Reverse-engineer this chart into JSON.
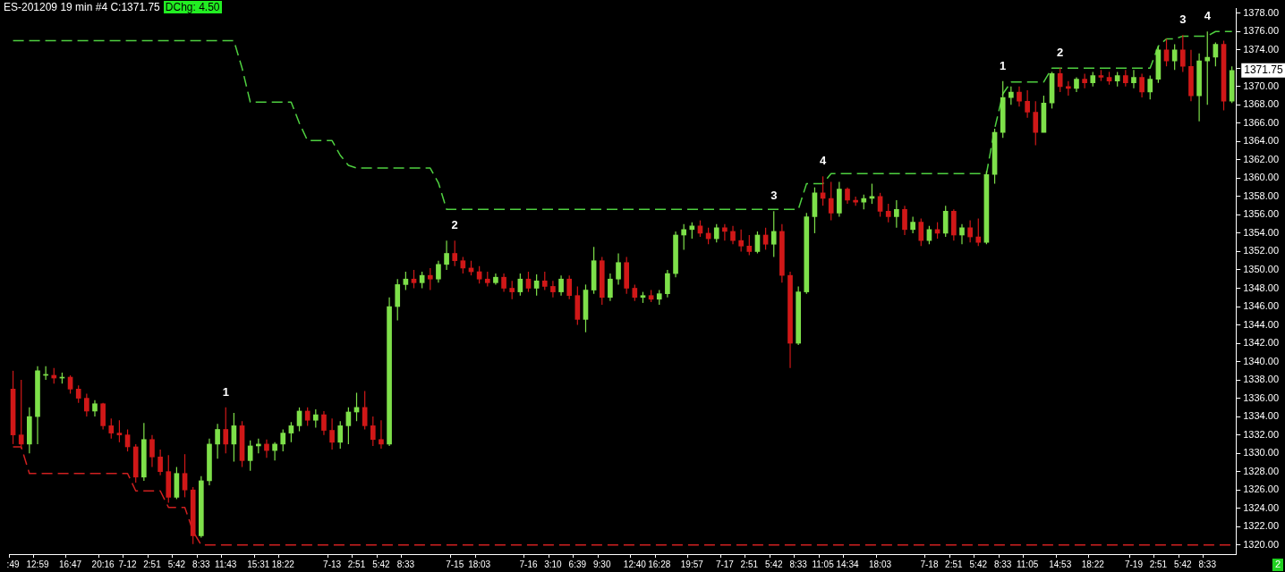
{
  "chart_data": {
    "type": "candlestick",
    "title": "ES-201209 19 min #4 C:1371.75",
    "subtitle": "DChg: 4.50",
    "categories": [
      ":49",
      null,
      null,
      "12:59",
      null,
      null,
      null,
      "16:47",
      null,
      null,
      null,
      "20:16",
      null,
      null,
      "7-12",
      null,
      null,
      "2:51",
      null,
      null,
      "5:42",
      null,
      null,
      "8:33",
      null,
      null,
      "11:43",
      null,
      null,
      null,
      "15:31",
      null,
      null,
      "18:22",
      null,
      null,
      null,
      null,
      null,
      "7-13",
      null,
      null,
      "2:51",
      null,
      null,
      "5:42",
      null,
      null,
      "8:33",
      null,
      null,
      null,
      null,
      null,
      "7-15",
      null,
      null,
      "18:03",
      null,
      null,
      null,
      null,
      null,
      "7-16",
      null,
      null,
      "3:10",
      null,
      null,
      "6:39",
      null,
      null,
      "9:30",
      null,
      null,
      null,
      "12:40",
      null,
      null,
      "16:28",
      null,
      null,
      null,
      "19:57",
      null,
      null,
      null,
      "7-17",
      null,
      null,
      "2:51",
      null,
      null,
      "5:42",
      null,
      null,
      "8:33",
      null,
      null,
      "11:05",
      null,
      null,
      "14:34",
      null,
      null,
      null,
      "18:03",
      null,
      null,
      null,
      null,
      null,
      "7-18",
      null,
      null,
      "2:51",
      null,
      null,
      "5:42",
      null,
      null,
      "8:33",
      null,
      null,
      "11:05",
      null,
      null,
      null,
      "14:53",
      null,
      null,
      null,
      "18:22",
      null,
      null,
      null,
      null,
      "7-19",
      null,
      null,
      "2:51",
      null,
      null,
      "5:42",
      null,
      null,
      "8:33",
      null,
      null,
      null
    ],
    "ohlc": [
      [
        1337,
        1339,
        1331,
        1332
      ],
      [
        1332,
        1338,
        1330.5,
        1331
      ],
      [
        1331,
        1335,
        1330,
        1334
      ],
      [
        1334,
        1339.5,
        1331,
        1339
      ],
      [
        1338.5,
        1339.5,
        1338,
        1338.6
      ],
      [
        1338.5,
        1339.3,
        1337.6,
        1338.2
      ],
      [
        1338.2,
        1338.8,
        1337.6,
        1338.3
      ],
      [
        1338.3,
        1338.5,
        1336.5,
        1337
      ],
      [
        1337,
        1337.4,
        1335.5,
        1336
      ],
      [
        1336,
        1336.5,
        1334,
        1334.6
      ],
      [
        1334.6,
        1335.8,
        1334,
        1335.4
      ],
      [
        1335.4,
        1335.5,
        1332.6,
        1333
      ],
      [
        1333,
        1333.8,
        1331.6,
        1332.2
      ],
      [
        1332.2,
        1333.6,
        1331.2,
        1332
      ],
      [
        1332,
        1332.6,
        1330.2,
        1330.7
      ],
      [
        1330.7,
        1331,
        1326.8,
        1327.4
      ],
      [
        1327.4,
        1333.3,
        1327,
        1331.5
      ],
      [
        1331.5,
        1332,
        1328.5,
        1329.6
      ],
      [
        1329.6,
        1330.4,
        1327.6,
        1328
      ],
      [
        1328,
        1329.8,
        1324.6,
        1325.2
      ],
      [
        1325.2,
        1328.5,
        1325,
        1327.8
      ],
      [
        1327.8,
        1329.9,
        1325.2,
        1326
      ],
      [
        1326,
        1326.3,
        1320.1,
        1321
      ],
      [
        1321,
        1327.5,
        1320.8,
        1327
      ],
      [
        1327,
        1331.6,
        1326.5,
        1331
      ],
      [
        1331,
        1333.2,
        1329.4,
        1332.6
      ],
      [
        1332.6,
        1335,
        1330,
        1331
      ],
      [
        1331,
        1334.4,
        1329.1,
        1333
      ],
      [
        1333,
        1333.5,
        1328.5,
        1329.2
      ],
      [
        1329.2,
        1331.4,
        1328.1,
        1330.8
      ],
      [
        1330.8,
        1331.6,
        1330,
        1331
      ],
      [
        1331,
        1331.5,
        1329.5,
        1330.3
      ],
      [
        1330.3,
        1331.2,
        1329.2,
        1331
      ],
      [
        1331,
        1332.6,
        1330.2,
        1332.2
      ],
      [
        1332.2,
        1333.4,
        1331.2,
        1333
      ],
      [
        1333,
        1335,
        1332.4,
        1334.6
      ],
      [
        1334.6,
        1335,
        1333,
        1333.6
      ],
      [
        1333.6,
        1334.8,
        1332.8,
        1334.2
      ],
      [
        1334.2,
        1334.6,
        1332,
        1332.5
      ],
      [
        1332.5,
        1333.8,
        1330.4,
        1331.2
      ],
      [
        1331.2,
        1333.5,
        1330.5,
        1333
      ],
      [
        1333,
        1335,
        1331,
        1334.5
      ],
      [
        1334.5,
        1336.6,
        1333.5,
        1335
      ],
      [
        1335,
        1336.8,
        1332.6,
        1333
      ],
      [
        1333,
        1334,
        1330.8,
        1331.5
      ],
      [
        1331.5,
        1333.6,
        1330.5,
        1331
      ],
      [
        1331,
        1347,
        1330.8,
        1346
      ],
      [
        1346,
        1349,
        1344.5,
        1348.4
      ],
      [
        1348.4,
        1349.8,
        1347.8,
        1349
      ],
      [
        1349,
        1350,
        1348,
        1348.6
      ],
      [
        1348.6,
        1349.8,
        1348,
        1349.4
      ],
      [
        1349.4,
        1350.2,
        1347.8,
        1349
      ],
      [
        1349,
        1351,
        1348.6,
        1350.6
      ],
      [
        1350.6,
        1353.2,
        1350,
        1351.8
      ],
      [
        1351.8,
        1353.2,
        1350.4,
        1351
      ],
      [
        1351,
        1351.4,
        1349.6,
        1350.2
      ],
      [
        1350.2,
        1351,
        1349.4,
        1349.8
      ],
      [
        1349.8,
        1350.4,
        1348.5,
        1349
      ],
      [
        1349,
        1349.8,
        1348.2,
        1348.6
      ],
      [
        1348.6,
        1349.6,
        1348.4,
        1349.2
      ],
      [
        1349.2,
        1349.6,
        1347.6,
        1348
      ],
      [
        1348,
        1348.8,
        1346.8,
        1347.6
      ],
      [
        1347.6,
        1349.6,
        1347.2,
        1349
      ],
      [
        1349,
        1349.8,
        1347.6,
        1348
      ],
      [
        1348,
        1349.5,
        1347.2,
        1348.8
      ],
      [
        1348.8,
        1349.8,
        1347.8,
        1348.2
      ],
      [
        1348.2,
        1348.8,
        1347,
        1347.6
      ],
      [
        1347.6,
        1349.4,
        1347.2,
        1349
      ],
      [
        1349,
        1349.4,
        1346.8,
        1347.2
      ],
      [
        1347.2,
        1348.2,
        1344,
        1344.6
      ],
      [
        1344.6,
        1348.4,
        1343.2,
        1347.8
      ],
      [
        1347.8,
        1352.5,
        1347.4,
        1351
      ],
      [
        1351,
        1351.4,
        1346.2,
        1347
      ],
      [
        1347,
        1349.6,
        1346.6,
        1349
      ],
      [
        1349,
        1351.8,
        1348.4,
        1350.8
      ],
      [
        1350.8,
        1351.4,
        1347.4,
        1348
      ],
      [
        1348,
        1348.4,
        1346.6,
        1347
      ],
      [
        1347,
        1347.6,
        1346.4,
        1347.2
      ],
      [
        1347.2,
        1347.8,
        1346.5,
        1346.8
      ],
      [
        1346.8,
        1347.8,
        1346.2,
        1347.4
      ],
      [
        1347.4,
        1350,
        1347,
        1349.6
      ],
      [
        1349.6,
        1354.2,
        1349.2,
        1353.8
      ],
      [
        1353.8,
        1355,
        1352.2,
        1354.4
      ],
      [
        1354.4,
        1355.2,
        1353.4,
        1354.8
      ],
      [
        1354.8,
        1355.4,
        1353.6,
        1354
      ],
      [
        1354,
        1354.6,
        1352.8,
        1353.4
      ],
      [
        1353.4,
        1355,
        1353,
        1354.6
      ],
      [
        1354.6,
        1355,
        1353.2,
        1354.2
      ],
      [
        1354.2,
        1354.8,
        1352.8,
        1353.2
      ],
      [
        1353.2,
        1354.4,
        1352,
        1352.6
      ],
      [
        1352.6,
        1353.8,
        1351.6,
        1352
      ],
      [
        1352,
        1354.2,
        1351.8,
        1353.8
      ],
      [
        1353.8,
        1354.6,
        1352.2,
        1352.8
      ],
      [
        1352.8,
        1356.4,
        1351.4,
        1354.2
      ],
      [
        1354.2,
        1355,
        1348.6,
        1349.4
      ],
      [
        1349.4,
        1349.8,
        1339.3,
        1342
      ],
      [
        1342,
        1348.2,
        1341.8,
        1347.6
      ],
      [
        1347.6,
        1356.2,
        1347.4,
        1355.8
      ],
      [
        1355.8,
        1359,
        1354,
        1358.4
      ],
      [
        1358.4,
        1360.2,
        1357,
        1357.8
      ],
      [
        1357.8,
        1359.6,
        1355.4,
        1356.2
      ],
      [
        1356.2,
        1359.6,
        1355.8,
        1358.8
      ],
      [
        1358.8,
        1359,
        1357.2,
        1357.6
      ],
      [
        1357.6,
        1358,
        1357,
        1357.4
      ],
      [
        1357.4,
        1358.2,
        1356.6,
        1357.8
      ],
      [
        1357.8,
        1359.4,
        1357.2,
        1358
      ],
      [
        1358,
        1358.4,
        1355.8,
        1356.4
      ],
      [
        1356.4,
        1357.2,
        1355.2,
        1355.8
      ],
      [
        1355.8,
        1357.6,
        1354.6,
        1356.6
      ],
      [
        1356.6,
        1357,
        1353.8,
        1354.4
      ],
      [
        1354.4,
        1355.8,
        1354,
        1355.2
      ],
      [
        1355.2,
        1355.6,
        1352.6,
        1353.2
      ],
      [
        1353.2,
        1354.8,
        1352.8,
        1354.4
      ],
      [
        1354.4,
        1355.2,
        1353.4,
        1354
      ],
      [
        1354,
        1357,
        1353.6,
        1356.4
      ],
      [
        1356.4,
        1356.6,
        1353.2,
        1353.8
      ],
      [
        1353.8,
        1355,
        1352.8,
        1354.6
      ],
      [
        1354.6,
        1355.4,
        1353,
        1353.6
      ],
      [
        1353.6,
        1355.6,
        1352.6,
        1353
      ],
      [
        1353,
        1360.8,
        1352.8,
        1360.4
      ],
      [
        1360.4,
        1365.4,
        1359.4,
        1365
      ],
      [
        1365,
        1370.6,
        1364.4,
        1368.8
      ],
      [
        1368.8,
        1370,
        1368,
        1369.4
      ],
      [
        1369.4,
        1370,
        1367.8,
        1368.4
      ],
      [
        1368.4,
        1369.6,
        1366.6,
        1367.2
      ],
      [
        1367.2,
        1368.4,
        1363.6,
        1365
      ],
      [
        1365,
        1369,
        1365,
        1368.2
      ],
      [
        1368.2,
        1371.6,
        1367.6,
        1371.4
      ],
      [
        1371.4,
        1372,
        1369.4,
        1370
      ],
      [
        1370,
        1370.6,
        1369,
        1369.8
      ],
      [
        1369.8,
        1371,
        1369.4,
        1370.8
      ],
      [
        1370.8,
        1371.4,
        1369.8,
        1370.4
      ],
      [
        1370.4,
        1371.6,
        1370,
        1371.2
      ],
      [
        1371.2,
        1371.8,
        1370.6,
        1371
      ],
      [
        1371,
        1371.6,
        1370.2,
        1370.6
      ],
      [
        1370.6,
        1371.6,
        1370,
        1371.2
      ],
      [
        1371.2,
        1371.8,
        1370,
        1370.4
      ],
      [
        1370.4,
        1371.8,
        1369.8,
        1371
      ],
      [
        1371,
        1371.4,
        1368.8,
        1369.4
      ],
      [
        1369.4,
        1371.2,
        1368.6,
        1370.8
      ],
      [
        1370.8,
        1374.4,
        1370.4,
        1374
      ],
      [
        1374,
        1375.2,
        1372.2,
        1372.8
      ],
      [
        1372.8,
        1374.6,
        1371.8,
        1374
      ],
      [
        1374,
        1375.6,
        1371.6,
        1372.2
      ],
      [
        1372.2,
        1374,
        1368.4,
        1369
      ],
      [
        1369,
        1373.6,
        1366.2,
        1372.8
      ],
      [
        1372.8,
        1376,
        1368,
        1373.2
      ],
      [
        1373.2,
        1374.8,
        1372.2,
        1374.6
      ],
      [
        1374.6,
        1375,
        1367.4,
        1368.4
      ],
      [
        1368.4,
        1372.2,
        1368.2,
        1371.75
      ]
    ],
    "colors": [
      "#d01818",
      "#d01818",
      "#7ee04a",
      "#7ee04a",
      "#7ee04a",
      "#d01818",
      "#7ee04a",
      "#d01818",
      "#d01818",
      "#d01818",
      "#7ee04a",
      "#d01818",
      "#d01818",
      "#d01818",
      "#d01818",
      "#d01818",
      "#7ee04a",
      "#d01818",
      "#d01818",
      "#d01818",
      "#7ee04a",
      "#d01818",
      "#d01818",
      "#7ee04a",
      "#7ee04a",
      "#7ee04a",
      "#d01818",
      "#7ee04a",
      "#d01818",
      "#7ee04a",
      "#7ee04a",
      "#d01818",
      "#7ee04a",
      "#7ee04a",
      "#7ee04a",
      "#7ee04a",
      "#d01818",
      "#7ee04a",
      "#d01818",
      "#d01818",
      "#7ee04a",
      "#7ee04a",
      "#7ee04a",
      "#d01818",
      "#d01818",
      "#d01818",
      "#7ee04a",
      "#7ee04a",
      "#7ee04a",
      "#d01818",
      "#7ee04a",
      "#d01818",
      "#7ee04a",
      "#7ee04a",
      "#d01818",
      "#d01818",
      "#d01818",
      "#d01818",
      "#d01818",
      "#7ee04a",
      "#d01818",
      "#d01818",
      "#7ee04a",
      "#d01818",
      "#7ee04a",
      "#d01818",
      "#d01818",
      "#7ee04a",
      "#d01818",
      "#d01818",
      "#7ee04a",
      "#7ee04a",
      "#d01818",
      "#7ee04a",
      "#7ee04a",
      "#d01818",
      "#d01818",
      "#7ee04a",
      "#d01818",
      "#7ee04a",
      "#7ee04a",
      "#7ee04a",
      "#7ee04a",
      "#7ee04a",
      "#d01818",
      "#d01818",
      "#7ee04a",
      "#d01818",
      "#d01818",
      "#d01818",
      "#d01818",
      "#7ee04a",
      "#d01818",
      "#7ee04a",
      "#d01818",
      "#d01818",
      "#7ee04a",
      "#7ee04a",
      "#7ee04a",
      "#d01818",
      "#d01818",
      "#7ee04a",
      "#d01818",
      "#d01818",
      "#7ee04a",
      "#7ee04a",
      "#d01818",
      "#d01818",
      "#7ee04a",
      "#d01818",
      "#7ee04a",
      "#d01818",
      "#7ee04a",
      "#d01818",
      "#7ee04a",
      "#d01818",
      "#7ee04a",
      "#d01818",
      "#d01818",
      "#7ee04a",
      "#7ee04a",
      "#7ee04a",
      "#7ee04a",
      "#d01818",
      "#d01818",
      "#d01818",
      "#7ee04a",
      "#7ee04a",
      "#d01818",
      "#d01818",
      "#7ee04a",
      "#d01818",
      "#7ee04a",
      "#d01818",
      "#d01818",
      "#7ee04a",
      "#d01818",
      "#7ee04a",
      "#d01818",
      "#7ee04a",
      "#7ee04a",
      "#d01818",
      "#7ee04a",
      "#d01818",
      "#d01818",
      "#7ee04a",
      "#7ee04a",
      "#7ee04a",
      "#d01818",
      "#7ee04a"
    ],
    "series": [
      {
        "type": "line",
        "line_style": "dashed",
        "color": "#4fd040",
        "values": [
          1375,
          1375,
          1375,
          1375,
          1375,
          1375,
          1375,
          1375,
          1375,
          1375,
          1375,
          1375,
          1375,
          1375,
          1375,
          1375,
          1375,
          1375,
          1375,
          1375,
          1375,
          1375,
          1375,
          1375,
          1375,
          1375,
          1375,
          1375,
          1372,
          1368.3,
          1368.3,
          1368.3,
          1368.3,
          1368.3,
          1368.3,
          1366,
          1364.1,
          1364.1,
          1364.1,
          1364.1,
          1362.5,
          1361.4,
          1361.1,
          1361.1,
          1361.1,
          1361.1,
          1361.1,
          1361.1,
          1361.1,
          1361.1,
          1361.1,
          1361.1,
          1359.5,
          1356.6,
          1356.6,
          1356.6,
          1356.6,
          1356.6,
          1356.6,
          1356.6,
          1356.6,
          1356.6,
          1356.6,
          1356.6,
          1356.6,
          1356.6,
          1356.6,
          1356.6,
          1356.6,
          1356.6,
          1356.6,
          1356.6,
          1356.6,
          1356.6,
          1356.6,
          1356.6,
          1356.6,
          1356.6,
          1356.6,
          1356.6,
          1356.6,
          1356.6,
          1356.6,
          1356.6,
          1356.6,
          1356.6,
          1356.6,
          1356.6,
          1356.6,
          1356.6,
          1356.6,
          1356.6,
          1356.6,
          1356.6,
          1356.6,
          1356.6,
          1356.6,
          1359.4,
          1359.4,
          1359.4,
          1360.5,
          1360.5,
          1360.5,
          1360.5,
          1360.5,
          1360.5,
          1360.5,
          1360.5,
          1360.5,
          1360.5,
          1360.5,
          1360.5,
          1360.5,
          1360.5,
          1360.5,
          1360.5,
          1360.5,
          1360.5,
          1360.5,
          1360.5,
          1365.4,
          1369.2,
          1370.5,
          1370.5,
          1370.5,
          1370.5,
          1370.5,
          1372,
          1372,
          1372,
          1372,
          1372,
          1372,
          1372,
          1372,
          1372,
          1372,
          1372,
          1372,
          1372,
          1374.4,
          1375.2,
          1375.2,
          1375.5,
          1375.5,
          1375.5,
          1375.5,
          1376,
          1376,
          1376
        ]
      },
      {
        "type": "line",
        "line_style": "dashed",
        "color": "#d02020",
        "values": [
          1330.7,
          1330.7,
          1327.8,
          1327.8,
          1327.8,
          1327.8,
          1327.8,
          1327.8,
          1327.8,
          1327.8,
          1327.8,
          1327.8,
          1327.8,
          1327.8,
          1327.8,
          1325.9,
          1325.9,
          1325.9,
          1325.9,
          1324.1,
          1324.1,
          1324.1,
          1321.5,
          1320,
          1320,
          1320,
          1320,
          1320,
          1320,
          1320,
          1320,
          1320,
          1320,
          1320,
          1320,
          1320,
          1320,
          1320,
          1320,
          1320,
          1320,
          1320,
          1320,
          1320,
          1320,
          1320,
          1320,
          1320,
          1320,
          1320,
          1320,
          1320,
          1320,
          1320,
          1320,
          1320,
          1320,
          1320,
          1320,
          1320,
          1320,
          1320,
          1320,
          1320,
          1320,
          1320,
          1320,
          1320,
          1320,
          1320,
          1320,
          1320,
          1320,
          1320,
          1320,
          1320,
          1320,
          1320,
          1320,
          1320,
          1320,
          1320,
          1320,
          1320,
          1320,
          1320,
          1320,
          1320,
          1320,
          1320,
          1320,
          1320,
          1320,
          1320,
          1320,
          1320,
          1320,
          1320,
          1320,
          1320,
          1320,
          1320,
          1320,
          1320,
          1320,
          1320,
          1320,
          1320,
          1320,
          1320,
          1320,
          1320,
          1320,
          1320,
          1320,
          1320,
          1320,
          1320,
          1320,
          1320,
          1320,
          1320,
          1320,
          1320,
          1320,
          1320,
          1320,
          1320,
          1320,
          1320,
          1320,
          1320,
          1320,
          1320,
          1320,
          1320,
          1320,
          1320,
          1320,
          1320,
          1320,
          1320,
          1320,
          1320,
          1320,
          1320,
          1320,
          1320,
          1320,
          1320
        ]
      }
    ],
    "ylim": [
      1319,
      1378.5
    ],
    "yticks": [
      {
        "value": 1320,
        "label": "1320.00"
      },
      {
        "value": 1322,
        "label": "1322.00"
      },
      {
        "value": 1324,
        "label": "1324.00"
      },
      {
        "value": 1326,
        "label": "1326.00"
      },
      {
        "value": 1328,
        "label": "1328.00"
      },
      {
        "value": 1330,
        "label": "1330.00"
      },
      {
        "value": 1332,
        "label": "1332.00"
      },
      {
        "value": 1334,
        "label": "1334.00"
      },
      {
        "value": 1336,
        "label": "1336.00"
      },
      {
        "value": 1338,
        "label": "1338.00"
      },
      {
        "value": 1340,
        "label": "1340.00"
      },
      {
        "value": 1342,
        "label": "1342.00"
      },
      {
        "value": 1344,
        "label": "1344.00"
      },
      {
        "value": 1346,
        "label": "1346.00"
      },
      {
        "value": 1348,
        "label": "1348.00"
      },
      {
        "value": 1350,
        "label": "1350.00"
      },
      {
        "value": 1352,
        "label": "1352.00"
      },
      {
        "value": 1354,
        "label": "1354.00"
      },
      {
        "value": 1356,
        "label": "1356.00"
      },
      {
        "value": 1358,
        "label": "1358.00"
      },
      {
        "value": 1360,
        "label": "1360.00"
      },
      {
        "value": 1362,
        "label": "1362.00"
      },
      {
        "value": 1364,
        "label": "1364.00"
      },
      {
        "value": 1366,
        "label": "1366.00"
      },
      {
        "value": 1368,
        "label": "1368.00"
      },
      {
        "value": 1370,
        "label": "1370.00"
      },
      {
        "value": 1372,
        "label": null
      },
      {
        "value": 1374,
        "label": "1374.00"
      },
      {
        "value": 1376,
        "label": "1376.00"
      },
      {
        "value": 1378,
        "label": "1378.00"
      }
    ],
    "annotations": [
      {
        "text": "1",
        "x": "11:43",
        "y": 1335
      },
      {
        "text": "2",
        "x": "7-15",
        "y": 1353.2
      },
      {
        "text": "3",
        "y": 1356.4
      },
      {
        "text": "4",
        "x": "11:05",
        "y": 1360.2
      },
      {
        "text": "1",
        "y": 1370.6
      },
      {
        "text": "2",
        "x": "14:53",
        "y": 1372
      },
      {
        "text": "3",
        "y": 1375.6
      },
      {
        "text": "4",
        "y": 1376
      },
      "1371.75",
      "2"
    ]
  }
}
